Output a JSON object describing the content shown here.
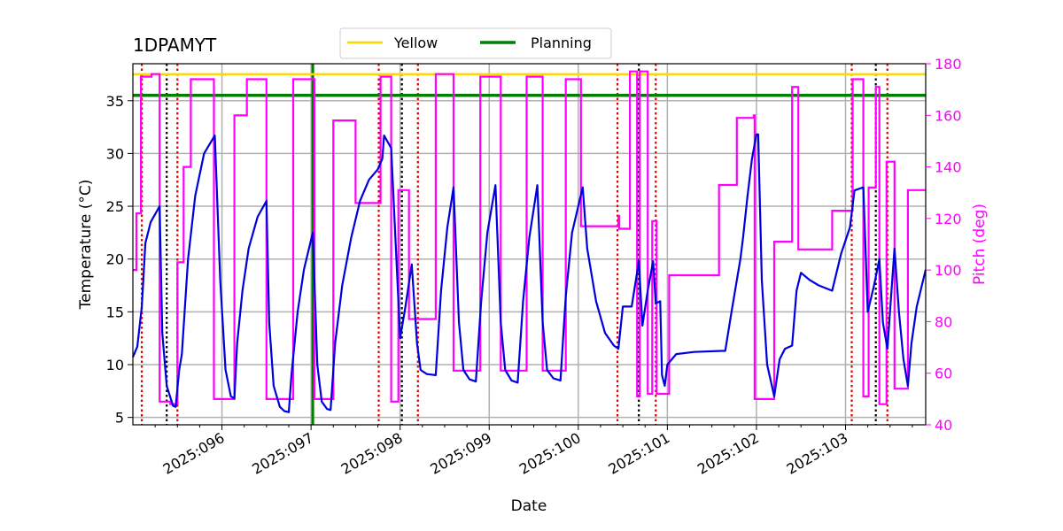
{
  "chart_data": {
    "type": "line",
    "title": "1DPAMYT",
    "xlabel": "Date",
    "ylabel": "Temperature ($^\\circ$C)",
    "ylabel_display": "Temperature (°C)",
    "y2label": "Pitch (deg)",
    "xlim": [
      95.0,
      103.9
    ],
    "ylim": [
      4.3,
      38.5
    ],
    "y2lim": [
      40,
      180
    ],
    "x_ticks": [
      96,
      97,
      98,
      99,
      100,
      101,
      102,
      103
    ],
    "x_tick_labels": [
      "2025:096",
      "2025:097",
      "2025:098",
      "2025:099",
      "2025:100",
      "2025:101",
      "2025:102",
      "2025:103"
    ],
    "y_ticks": [
      5,
      10,
      15,
      20,
      25,
      30,
      35
    ],
    "y2_ticks": [
      40,
      60,
      80,
      100,
      120,
      140,
      160,
      180
    ],
    "grid": true,
    "legend": {
      "position": "top-center",
      "entries": [
        {
          "label": "Yellow",
          "color": "#ffd700"
        },
        {
          "label": "Planning",
          "color": "#008000"
        }
      ]
    },
    "colors": {
      "temperature": "#0000dd",
      "pitch": "#ff00ff",
      "yellow": "#ffd700",
      "planning": "#008000",
      "red_marker": "#dd0000",
      "black_marker": "#000000",
      "y2_axis": "#ff00ff",
      "grid": "#b0b0b0"
    },
    "limits": {
      "yellow": 37.5,
      "planning": 35.5
    },
    "planning_vline_x": 97.02,
    "red_dotted_x": [
      95.1,
      95.5,
      97.76,
      98.2,
      100.44,
      100.87,
      103.07,
      103.47
    ],
    "black_dotted_x": [
      95.38,
      98.02,
      100.68,
      103.34
    ],
    "series": [
      {
        "axis": "left",
        "points": [
          [
            95.0,
            10.7
          ],
          [
            95.05,
            11.7
          ],
          [
            95.1,
            15.5
          ],
          [
            95.14,
            21.5
          ],
          [
            95.2,
            23.5
          ],
          [
            95.3,
            25.0
          ],
          [
            95.33,
            13.0
          ],
          [
            95.38,
            8.0
          ],
          [
            95.45,
            6.1
          ],
          [
            95.48,
            6.0
          ],
          [
            95.52,
            9.5
          ],
          [
            95.55,
            11.0
          ],
          [
            95.62,
            20.0
          ],
          [
            95.7,
            26.0
          ],
          [
            95.8,
            30.0
          ],
          [
            95.92,
            31.7
          ],
          [
            95.98,
            18.0
          ],
          [
            96.04,
            9.5
          ],
          [
            96.1,
            7.0
          ],
          [
            96.14,
            6.8
          ],
          [
            96.17,
            12.0
          ],
          [
            96.23,
            17.0
          ],
          [
            96.3,
            21.0
          ],
          [
            96.4,
            24.0
          ],
          [
            96.5,
            25.5
          ],
          [
            96.53,
            14.0
          ],
          [
            96.58,
            8.0
          ],
          [
            96.65,
            6.0
          ],
          [
            96.7,
            5.6
          ],
          [
            96.75,
            5.5
          ],
          [
            96.78,
            9.0
          ],
          [
            96.85,
            15.0
          ],
          [
            96.92,
            19.0
          ],
          [
            97.02,
            22.5
          ],
          [
            97.07,
            10.0
          ],
          [
            97.12,
            6.5
          ],
          [
            97.18,
            5.8
          ],
          [
            97.22,
            5.7
          ],
          [
            97.27,
            12.0
          ],
          [
            97.35,
            17.5
          ],
          [
            97.45,
            22.0
          ],
          [
            97.55,
            25.5
          ],
          [
            97.65,
            27.5
          ],
          [
            97.75,
            28.5
          ],
          [
            97.8,
            29.5
          ],
          [
            97.82,
            31.7
          ],
          [
            97.9,
            30.5
          ],
          [
            98.0,
            12.5
          ],
          [
            98.06,
            15.5
          ],
          [
            98.13,
            19.5
          ],
          [
            98.19,
            12.0
          ],
          [
            98.23,
            9.5
          ],
          [
            98.3,
            9.1
          ],
          [
            98.4,
            9.0
          ],
          [
            98.46,
            17.0
          ],
          [
            98.53,
            23.0
          ],
          [
            98.6,
            26.8
          ],
          [
            98.66,
            14.0
          ],
          [
            98.71,
            9.5
          ],
          [
            98.78,
            8.6
          ],
          [
            98.85,
            8.4
          ],
          [
            98.91,
            16.0
          ],
          [
            98.98,
            22.5
          ],
          [
            99.07,
            27.0
          ],
          [
            99.13,
            14.0
          ],
          [
            99.18,
            9.5
          ],
          [
            99.25,
            8.5
          ],
          [
            99.32,
            8.3
          ],
          [
            99.38,
            16.0
          ],
          [
            99.45,
            22.0
          ],
          [
            99.54,
            27.0
          ],
          [
            99.6,
            14.0
          ],
          [
            99.65,
            9.5
          ],
          [
            99.72,
            8.7
          ],
          [
            99.8,
            8.5
          ],
          [
            99.86,
            16.5
          ],
          [
            99.93,
            22.5
          ],
          [
            100.05,
            26.8
          ],
          [
            100.1,
            21.0
          ],
          [
            100.2,
            16.0
          ],
          [
            100.3,
            13.0
          ],
          [
            100.4,
            11.8
          ],
          [
            100.45,
            11.5
          ],
          [
            100.5,
            15.5
          ],
          [
            100.6,
            15.5
          ],
          [
            100.68,
            19.8
          ],
          [
            100.72,
            13.7
          ],
          [
            100.78,
            17.0
          ],
          [
            100.84,
            19.8
          ],
          [
            100.87,
            15.8
          ],
          [
            100.92,
            16.0
          ],
          [
            100.94,
            9.0
          ],
          [
            100.97,
            8.0
          ],
          [
            101.0,
            10.0
          ],
          [
            101.1,
            11.0
          ],
          [
            101.3,
            11.2
          ],
          [
            101.6,
            11.3
          ],
          [
            101.65,
            11.3
          ],
          [
            101.72,
            15.0
          ],
          [
            101.82,
            20.0
          ],
          [
            101.85,
            22.0
          ],
          [
            101.9,
            26.0
          ],
          [
            101.95,
            29.5
          ],
          [
            102.0,
            31.8
          ],
          [
            102.02,
            31.8
          ],
          [
            102.06,
            18.0
          ],
          [
            102.12,
            10.0
          ],
          [
            102.2,
            7.0
          ],
          [
            102.26,
            10.5
          ],
          [
            102.32,
            11.5
          ],
          [
            102.4,
            11.8
          ],
          [
            102.45,
            17.0
          ],
          [
            102.5,
            18.7
          ],
          [
            102.6,
            18.0
          ],
          [
            102.7,
            17.5
          ],
          [
            102.85,
            17.0
          ],
          [
            102.95,
            20.5
          ],
          [
            103.05,
            23.0
          ],
          [
            103.1,
            26.5
          ],
          [
            103.2,
            26.8
          ],
          [
            103.25,
            15.0
          ],
          [
            103.32,
            17.5
          ],
          [
            103.38,
            20.0
          ],
          [
            103.42,
            14.0
          ],
          [
            103.47,
            11.5
          ],
          [
            103.52,
            17.5
          ],
          [
            103.55,
            21.0
          ],
          [
            103.6,
            15.0
          ],
          [
            103.65,
            10.5
          ],
          [
            103.7,
            8.0
          ],
          [
            103.74,
            12.0
          ],
          [
            103.8,
            15.5
          ],
          [
            103.9,
            19.0
          ]
        ]
      },
      {
        "axis": "right",
        "points": [
          [
            95.0,
            100
          ],
          [
            95.04,
            100
          ],
          [
            95.04,
            122
          ],
          [
            95.09,
            122
          ],
          [
            95.09,
            175
          ],
          [
            95.21,
            175
          ],
          [
            95.21,
            176
          ],
          [
            95.3,
            176
          ],
          [
            95.3,
            49
          ],
          [
            95.42,
            49
          ],
          [
            95.42,
            48
          ],
          [
            95.5,
            48
          ],
          [
            95.5,
            103
          ],
          [
            95.57,
            103
          ],
          [
            95.57,
            140
          ],
          [
            95.65,
            140
          ],
          [
            95.65,
            174
          ],
          [
            95.91,
            174
          ],
          [
            95.91,
            50
          ],
          [
            96.14,
            50
          ],
          [
            96.14,
            160
          ],
          [
            96.28,
            160
          ],
          [
            96.28,
            174
          ],
          [
            96.5,
            174
          ],
          [
            96.5,
            50
          ],
          [
            96.8,
            50
          ],
          [
            96.8,
            174
          ],
          [
            97.04,
            174
          ],
          [
            97.04,
            50
          ],
          [
            97.25,
            50
          ],
          [
            97.25,
            158
          ],
          [
            97.5,
            158
          ],
          [
            97.5,
            126
          ],
          [
            97.78,
            126
          ],
          [
            97.78,
            175
          ],
          [
            97.9,
            175
          ],
          [
            97.9,
            49
          ],
          [
            97.98,
            49
          ],
          [
            97.98,
            131
          ],
          [
            98.1,
            131
          ],
          [
            98.1,
            81
          ],
          [
            98.4,
            81
          ],
          [
            98.4,
            176
          ],
          [
            98.6,
            176
          ],
          [
            98.6,
            61
          ],
          [
            98.9,
            61
          ],
          [
            98.9,
            175
          ],
          [
            99.13,
            175
          ],
          [
            99.13,
            61
          ],
          [
            99.42,
            61
          ],
          [
            99.42,
            175
          ],
          [
            99.6,
            175
          ],
          [
            99.6,
            61
          ],
          [
            99.86,
            61
          ],
          [
            99.86,
            174
          ],
          [
            100.03,
            174
          ],
          [
            100.03,
            117
          ],
          [
            100.45,
            117
          ],
          [
            100.45,
            121
          ],
          [
            100.46,
            121
          ],
          [
            100.46,
            116
          ],
          [
            100.58,
            116
          ],
          [
            100.58,
            177
          ],
          [
            100.66,
            177
          ],
          [
            100.66,
            51
          ],
          [
            100.69,
            51
          ],
          [
            100.69,
            177
          ],
          [
            100.78,
            177
          ],
          [
            100.78,
            52
          ],
          [
            100.83,
            52
          ],
          [
            100.83,
            119
          ],
          [
            100.88,
            119
          ],
          [
            100.88,
            52
          ],
          [
            101.02,
            52
          ],
          [
            101.02,
            98
          ],
          [
            101.58,
            98
          ],
          [
            101.58,
            133
          ],
          [
            101.78,
            133
          ],
          [
            101.78,
            159
          ],
          [
            101.97,
            159
          ],
          [
            101.97,
            160
          ],
          [
            101.98,
            160
          ],
          [
            101.98,
            50
          ],
          [
            102.2,
            50
          ],
          [
            102.2,
            111
          ],
          [
            102.4,
            111
          ],
          [
            102.4,
            171
          ],
          [
            102.47,
            171
          ],
          [
            102.47,
            108
          ],
          [
            102.85,
            108
          ],
          [
            102.85,
            123
          ],
          [
            103.08,
            123
          ],
          [
            103.08,
            174
          ],
          [
            103.2,
            174
          ],
          [
            103.2,
            51
          ],
          [
            103.26,
            51
          ],
          [
            103.26,
            132
          ],
          [
            103.34,
            132
          ],
          [
            103.34,
            171
          ],
          [
            103.38,
            171
          ],
          [
            103.38,
            48
          ],
          [
            103.46,
            48
          ],
          [
            103.46,
            142
          ],
          [
            103.55,
            142
          ],
          [
            103.55,
            54
          ],
          [
            103.7,
            54
          ],
          [
            103.7,
            131
          ],
          [
            103.9,
            131
          ]
        ]
      }
    ]
  }
}
